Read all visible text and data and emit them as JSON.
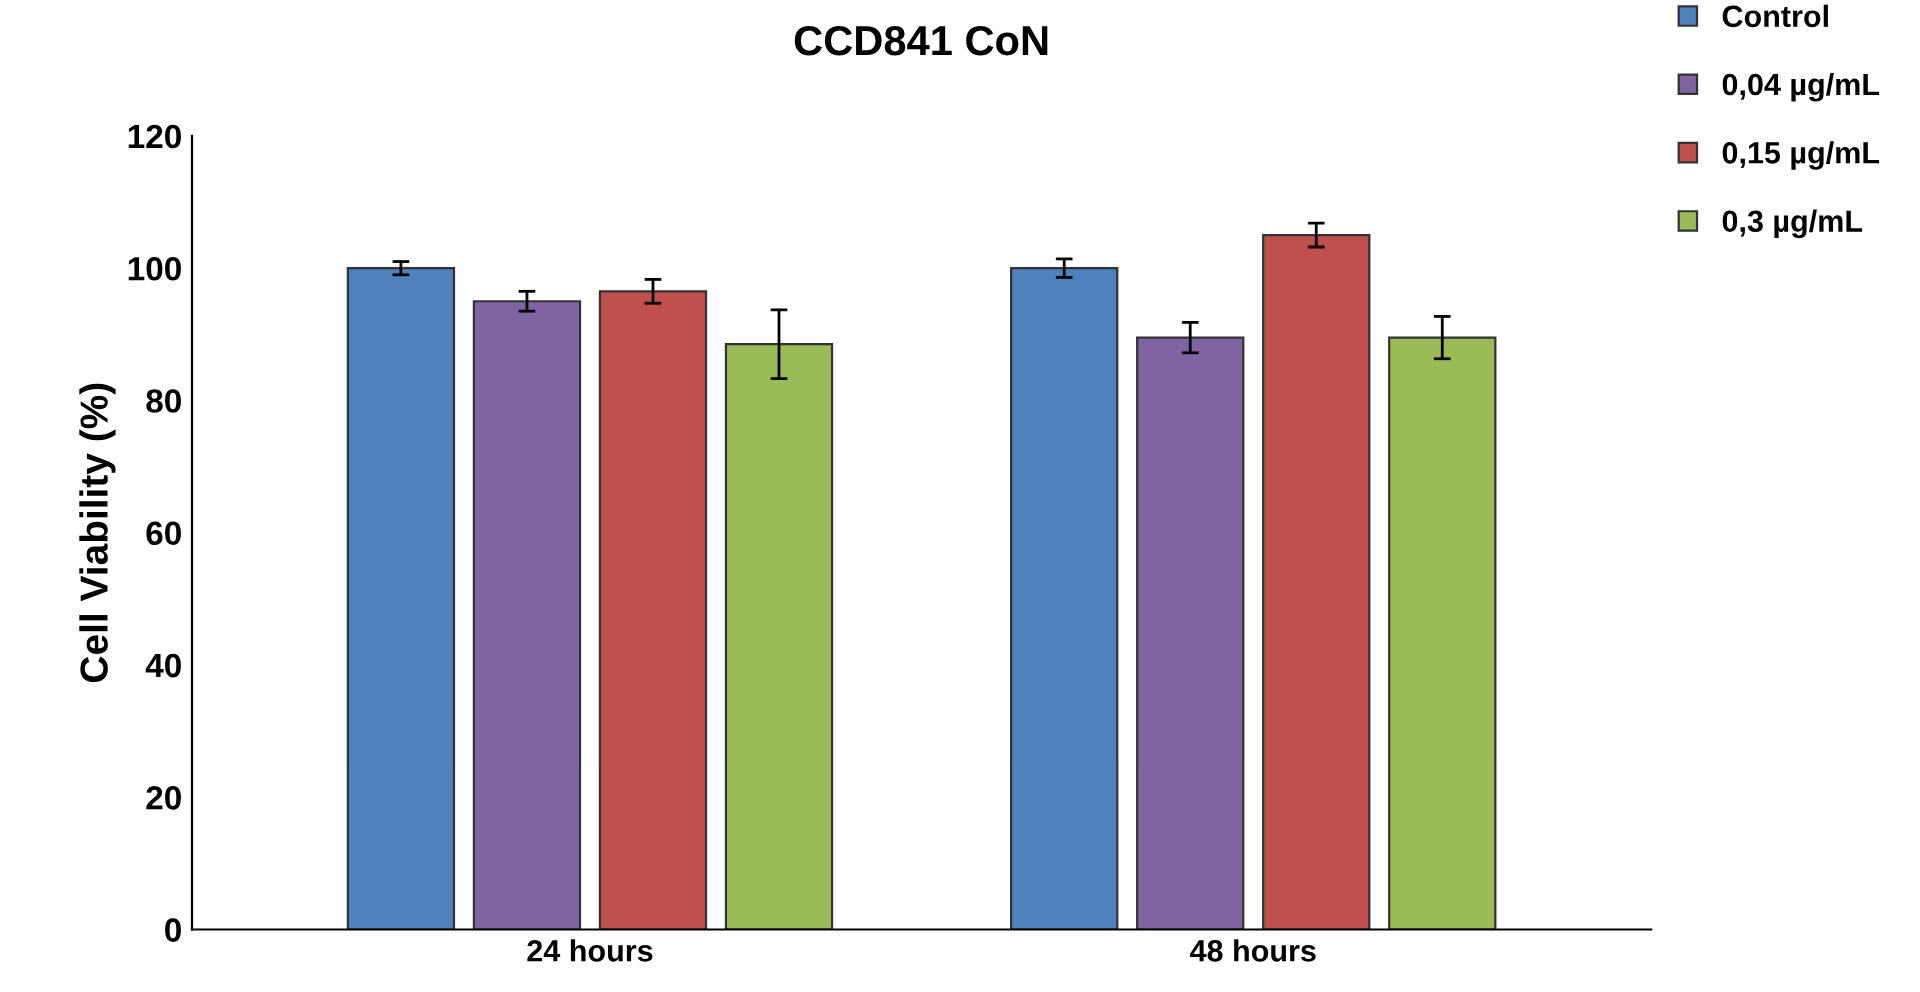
{
  "chart_data": {
    "type": "bar",
    "title": "CCD841 CoN",
    "ylabel": "Cell Viability (%)",
    "categories": [
      "24 hours",
      "48 hours"
    ],
    "series": [
      {
        "name": "Control",
        "color": "#4f81bd",
        "values": [
          100,
          100
        ],
        "errors": [
          1,
          1.4
        ]
      },
      {
        "name": "0,04 µg/mL",
        "color": "#8064a2",
        "values": [
          95,
          89.5
        ],
        "errors": [
          1.5,
          2.3
        ]
      },
      {
        "name": "0,15 µg/mL",
        "color": "#c0504d",
        "values": [
          96.5,
          105
        ],
        "errors": [
          1.8,
          1.8
        ]
      },
      {
        "name": "0,3 µg/mL",
        "color": "#9bbb59",
        "values": [
          88.5,
          89.5
        ],
        "errors": [
          5.2,
          3.2
        ]
      }
    ],
    "ylim": [
      0,
      120
    ],
    "yticks": [
      0,
      20,
      40,
      60,
      80,
      100,
      120
    ],
    "grid": false,
    "legend": "top right"
  }
}
